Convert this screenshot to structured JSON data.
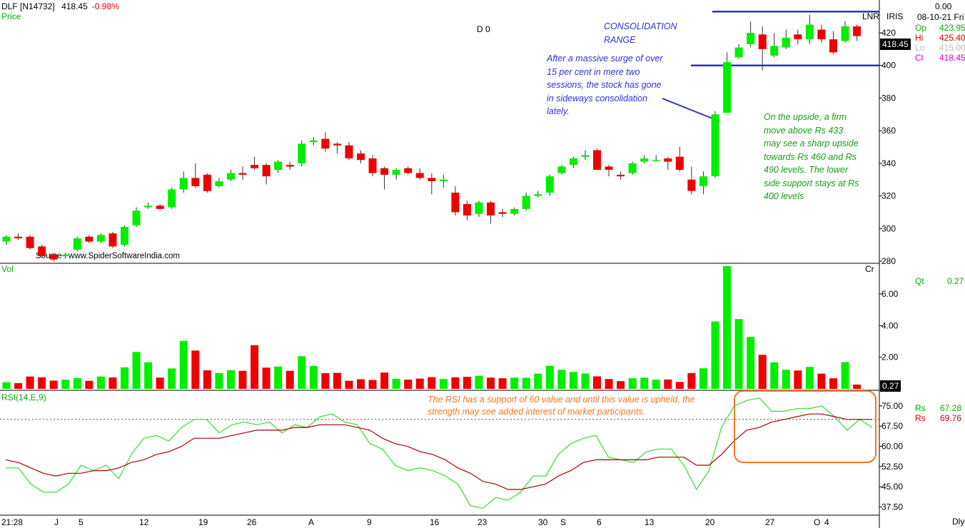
{
  "header": {
    "symbol": "DLF [N14732]",
    "last": "418.45",
    "change": "-0.98%",
    "price_label": "Price",
    "d_marker": "D 0",
    "source": "Source : www.SpiderSoftwareIndia.com",
    "lnr": "LNR",
    "iris": "IRIS"
  },
  "info_panel": {
    "value_top": "0.00",
    "date": "08-10-21 Fri",
    "op_label": "Op",
    "op": "423.95",
    "hi_label": "Hi",
    "hi": "425.40",
    "lo_label": "Lo",
    "lo": "415.00",
    "cl_label": "Cl",
    "cl": "418.45",
    "last_price_box": "418.45",
    "qt_label": "Qt",
    "qt": "0.27",
    "vol_box": "0.27",
    "rs1_label": "Rs",
    "rs1": "67.28",
    "rs2_label": "Rs",
    "rs2": "69.76"
  },
  "annotations": {
    "consolidation_title": "CONSOLIDATION\nRANGE",
    "consolidation_note": "After a massive surge of over 15 per cent in mere two sessions, the stock has gone in sideways consolidation lately.",
    "upside_note": "On the upside, a firm move above Rs 433 may see a sharp upside towards Rs 460 and Rs 490 levels. The lower side support stays at Rs 400 levels",
    "rsi_note": "The RSI has a support of 60 value and until this value is upheld, the strength may see added interest of market participants."
  },
  "colors": {
    "up": "#00ee00",
    "down": "#ee0000",
    "rsi": "#33dd33",
    "rsi_signal": "#aa0000",
    "annotation_line": "#3030c0",
    "highlight_box": "#f07a20"
  },
  "chart_data": [
    {
      "type": "candlestick",
      "title": "DLF [N14732]",
      "ylabel": "Price",
      "yticks": [
        280,
        300,
        320,
        340,
        360,
        380,
        400,
        420
      ],
      "ylim": [
        280,
        434
      ],
      "x_labels": [
        "21:28",
        "J",
        "5",
        "12",
        "19",
        "26",
        "A",
        "9",
        "16",
        "23",
        "30",
        "S",
        "6",
        "13",
        "20",
        "27",
        "O",
        "4"
      ],
      "candles": [
        {
          "o": 292,
          "h": 296,
          "l": 290,
          "c": 295
        },
        {
          "o": 295,
          "h": 297,
          "l": 293,
          "c": 294
        },
        {
          "o": 295,
          "h": 296,
          "l": 287,
          "c": 288
        },
        {
          "o": 289,
          "h": 290,
          "l": 282,
          "c": 283
        },
        {
          "o": 284,
          "h": 285,
          "l": 280,
          "c": 281
        },
        {
          "o": 283,
          "h": 285,
          "l": 282,
          "c": 284
        },
        {
          "o": 287,
          "h": 295,
          "l": 286,
          "c": 294
        },
        {
          "o": 295,
          "h": 296,
          "l": 291,
          "c": 292
        },
        {
          "o": 292,
          "h": 297,
          "l": 291,
          "c": 296
        },
        {
          "o": 297,
          "h": 298,
          "l": 288,
          "c": 289
        },
        {
          "o": 290,
          "h": 302,
          "l": 289,
          "c": 301
        },
        {
          "o": 302,
          "h": 313,
          "l": 301,
          "c": 311
        },
        {
          "o": 313,
          "h": 316,
          "l": 312,
          "c": 314
        },
        {
          "o": 314,
          "h": 315,
          "l": 311,
          "c": 312
        },
        {
          "o": 313,
          "h": 325,
          "l": 312,
          "c": 324
        },
        {
          "o": 324,
          "h": 335,
          "l": 322,
          "c": 331
        },
        {
          "o": 331,
          "h": 340,
          "l": 325,
          "c": 326
        },
        {
          "o": 333,
          "h": 334,
          "l": 322,
          "c": 323
        },
        {
          "o": 326,
          "h": 331,
          "l": 325,
          "c": 329
        },
        {
          "o": 330,
          "h": 336,
          "l": 329,
          "c": 334
        },
        {
          "o": 334,
          "h": 338,
          "l": 330,
          "c": 333
        },
        {
          "o": 339,
          "h": 344,
          "l": 336,
          "c": 337
        },
        {
          "o": 339,
          "h": 340,
          "l": 327,
          "c": 332
        },
        {
          "o": 336,
          "h": 342,
          "l": 334,
          "c": 341
        },
        {
          "o": 339,
          "h": 341,
          "l": 336,
          "c": 338
        },
        {
          "o": 340,
          "h": 354,
          "l": 338,
          "c": 352
        },
        {
          "o": 353,
          "h": 356,
          "l": 351,
          "c": 354
        },
        {
          "o": 355,
          "h": 359,
          "l": 347,
          "c": 349
        },
        {
          "o": 352,
          "h": 353,
          "l": 346,
          "c": 351
        },
        {
          "o": 351,
          "h": 353,
          "l": 342,
          "c": 343
        },
        {
          "o": 346,
          "h": 348,
          "l": 340,
          "c": 342
        },
        {
          "o": 343,
          "h": 345,
          "l": 332,
          "c": 334
        },
        {
          "o": 337,
          "h": 338,
          "l": 324,
          "c": 333
        },
        {
          "o": 333,
          "h": 337,
          "l": 330,
          "c": 336
        },
        {
          "o": 337,
          "h": 338,
          "l": 333,
          "c": 334
        },
        {
          "o": 334,
          "h": 337,
          "l": 330,
          "c": 331
        },
        {
          "o": 331,
          "h": 334,
          "l": 321,
          "c": 329
        },
        {
          "o": 329,
          "h": 333,
          "l": 325,
          "c": 330
        },
        {
          "o": 322,
          "h": 326,
          "l": 308,
          "c": 310
        },
        {
          "o": 315,
          "h": 317,
          "l": 305,
          "c": 308
        },
        {
          "o": 309,
          "h": 317,
          "l": 307,
          "c": 316
        },
        {
          "o": 316,
          "h": 317,
          "l": 303,
          "c": 308
        },
        {
          "o": 310,
          "h": 312,
          "l": 307,
          "c": 309
        },
        {
          "o": 309,
          "h": 313,
          "l": 308,
          "c": 312
        },
        {
          "o": 312,
          "h": 322,
          "l": 311,
          "c": 320
        },
        {
          "o": 320,
          "h": 323,
          "l": 319,
          "c": 321
        },
        {
          "o": 322,
          "h": 333,
          "l": 320,
          "c": 332
        },
        {
          "o": 334,
          "h": 339,
          "l": 333,
          "c": 338
        },
        {
          "o": 339,
          "h": 344,
          "l": 337,
          "c": 343
        },
        {
          "o": 344,
          "h": 348,
          "l": 342,
          "c": 345
        },
        {
          "o": 348,
          "h": 349,
          "l": 336,
          "c": 336
        },
        {
          "o": 338,
          "h": 339,
          "l": 332,
          "c": 336
        },
        {
          "o": 333,
          "h": 335,
          "l": 330,
          "c": 332
        },
        {
          "o": 334,
          "h": 341,
          "l": 333,
          "c": 340
        },
        {
          "o": 341,
          "h": 345,
          "l": 340,
          "c": 343
        },
        {
          "o": 342,
          "h": 345,
          "l": 341,
          "c": 342
        },
        {
          "o": 343,
          "h": 344,
          "l": 336,
          "c": 341
        },
        {
          "o": 344,
          "h": 350,
          "l": 335,
          "c": 336
        },
        {
          "o": 330,
          "h": 338,
          "l": 321,
          "c": 323
        },
        {
          "o": 326,
          "h": 335,
          "l": 321,
          "c": 332
        },
        {
          "o": 332,
          "h": 372,
          "l": 331,
          "c": 370
        },
        {
          "o": 371,
          "h": 408,
          "l": 371,
          "c": 402
        },
        {
          "o": 405,
          "h": 413,
          "l": 404,
          "c": 411
        },
        {
          "o": 413,
          "h": 427,
          "l": 411,
          "c": 420
        },
        {
          "o": 419,
          "h": 424,
          "l": 397,
          "c": 410
        },
        {
          "o": 406,
          "h": 420,
          "l": 405,
          "c": 412
        },
        {
          "o": 411,
          "h": 422,
          "l": 410,
          "c": 417
        },
        {
          "o": 419,
          "h": 422,
          "l": 413,
          "c": 416
        },
        {
          "o": 416,
          "h": 431,
          "l": 413,
          "c": 425
        },
        {
          "o": 422,
          "h": 425,
          "l": 414,
          "c": 416
        },
        {
          "o": 416,
          "h": 421,
          "l": 407,
          "c": 408
        },
        {
          "o": 415,
          "h": 427,
          "l": 414,
          "c": 424
        },
        {
          "o": 424,
          "h": 425,
          "l": 415,
          "c": 418
        }
      ],
      "consolidation_range": [
        400,
        433
      ]
    },
    {
      "type": "bar",
      "title": "Vol",
      "unit": "Cr",
      "yticks": [
        2.0,
        4.0,
        6.0
      ],
      "ylim": [
        0,
        7.8
      ],
      "values": [
        0.42,
        0.36,
        0.78,
        0.73,
        0.52,
        0.58,
        0.68,
        0.51,
        0.78,
        0.72,
        1.36,
        2.33,
        1.68,
        0.71,
        1.29,
        3.03,
        2.42,
        1.17,
        1.0,
        1.18,
        1.14,
        2.76,
        1.34,
        1.41,
        1.14,
        2.06,
        1.45,
        0.99,
        1.01,
        0.51,
        0.61,
        0.56,
        1.03,
        0.64,
        0.58,
        0.65,
        0.74,
        0.62,
        0.73,
        0.76,
        0.82,
        0.71,
        0.67,
        0.71,
        0.7,
        0.96,
        1.46,
        1.2,
        1.07,
        0.97,
        0.79,
        0.62,
        0.49,
        0.67,
        0.71,
        0.58,
        0.59,
        0.44,
        1.0,
        1.3,
        4.26,
        7.76,
        4.41,
        3.28,
        2.15,
        1.68,
        1.21,
        1.16,
        1.39,
        0.96,
        0.67,
        1.69,
        0.27
      ]
    },
    {
      "type": "line",
      "title": "RSI(14,E,9)",
      "yticks": [
        37.5,
        45.0,
        52.5,
        60.0,
        67.5,
        75.0
      ],
      "ylim": [
        35,
        80
      ],
      "reference_line": 70,
      "series": [
        {
          "name": "Rs",
          "values": [
            52,
            52,
            46,
            43,
            43,
            46,
            53,
            51,
            53,
            48,
            57,
            63,
            64,
            62,
            67,
            70,
            70,
            65,
            68,
            69,
            68,
            69,
            65,
            68,
            67,
            71,
            72,
            69,
            68,
            61,
            59,
            53,
            51,
            52,
            51,
            49,
            46,
            38,
            37,
            41,
            40,
            43,
            49,
            49,
            57,
            61,
            63,
            64,
            56,
            55,
            54,
            58,
            59,
            59,
            53,
            44,
            51,
            67,
            75,
            77,
            78,
            73,
            73,
            74,
            74,
            75,
            71,
            66,
            70,
            67
          ]
        },
        {
          "name": "Rs",
          "values": [
            55,
            54,
            52,
            50,
            49,
            50,
            50,
            51,
            51,
            52,
            54,
            55,
            57,
            58,
            60,
            63,
            63,
            63,
            64,
            65,
            66,
            66,
            66,
            67,
            67,
            68,
            68,
            68,
            67,
            66,
            63,
            61,
            60,
            58,
            57,
            55,
            52,
            50,
            47,
            46,
            44,
            44,
            45,
            46,
            49,
            51,
            54,
            55,
            55,
            55,
            55,
            55,
            56,
            56,
            56,
            53,
            53,
            57,
            62,
            66,
            67,
            69,
            70,
            71,
            72,
            72,
            71,
            70,
            70,
            70
          ]
        }
      ],
      "x_labels": [
        "21:28",
        "J",
        "5",
        "12",
        "19",
        "26",
        "A",
        "9",
        "16",
        "23",
        "30",
        "S",
        "6",
        "13",
        "20",
        "27",
        "O",
        "4"
      ],
      "xlabel_right": "Dly"
    }
  ]
}
